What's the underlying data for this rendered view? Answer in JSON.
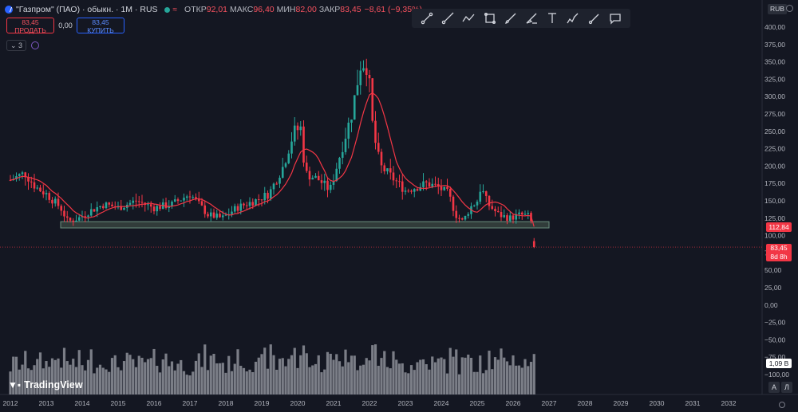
{
  "header": {
    "title": "\"Газпром\" (ПАО) · обыкн. · 1M · RUS",
    "open_label": "ОТКР",
    "open_value": "92,01",
    "high_label": "МАКС",
    "high_value": "96,40",
    "low_label": "МИН",
    "low_value": "82,00",
    "close_label": "ЗАКР",
    "close_value": "83,45",
    "change_value": "−8,61 (−9,35%)"
  },
  "trade": {
    "sell_price": "83,45",
    "sell_label": "ПРОДАТЬ",
    "spread": "0,00",
    "buy_price": "83,45",
    "buy_label": "КУПИТЬ"
  },
  "indicators": {
    "collapsed_count": "3"
  },
  "toolbar": {
    "tools": [
      "trend-line-icon",
      "ray-icon",
      "path-icon",
      "rectangle-icon",
      "brush-icon",
      "highlighter-icon",
      "text-icon",
      "pencil-icon",
      "marker-icon",
      "comment-icon"
    ]
  },
  "currency": "RUB",
  "logo_text": "TradingView",
  "scale_buttons": {
    "auto": "A",
    "log": "Л"
  },
  "tags": {
    "ma_value": "112,84",
    "price": "83,45",
    "countdown": "8d 8h",
    "volume": "1,09 B"
  },
  "colors": {
    "background": "#141722",
    "up": "#26a69a",
    "down": "#f23645",
    "ma_line": "#f23645",
    "volume": "#9598a1",
    "zone_fill": "#3b4a43",
    "zone_stroke": "#6b8f7e"
  },
  "chart_data": {
    "type": "candlestick",
    "timeframe": "1M",
    "y_axis_ticks": [
      "400,00",
      "375,00",
      "350,00",
      "325,00",
      "300,00",
      "275,00",
      "250,00",
      "225,00",
      "200,00",
      "175,00",
      "150,00",
      "125,00",
      "100,00",
      "75,00",
      "50,00",
      "25,00",
      "0,00",
      "−25,00",
      "−50,00",
      "−75,00",
      "−100,00"
    ],
    "y_ticks_values": [
      400,
      375,
      350,
      325,
      300,
      275,
      250,
      225,
      200,
      175,
      150,
      125,
      100,
      75,
      50,
      25,
      0,
      -25,
      -50,
      -75,
      -100
    ],
    "x_axis_ticks": [
      "2012",
      "2013",
      "2014",
      "2015",
      "2016",
      "2017",
      "2018",
      "2019",
      "2020",
      "2021",
      "2022",
      "2023",
      "2024",
      "2025",
      "2026",
      "2027",
      "2028",
      "2029",
      "2030",
      "2031",
      "2032"
    ],
    "ylim": [
      -100,
      400
    ],
    "price_anchors": [
      [
        2012.0,
        180
      ],
      [
        2012.4,
        190
      ],
      [
        2012.7,
        170
      ],
      [
        2013.0,
        160
      ],
      [
        2013.4,
        140
      ],
      [
        2013.6,
        120
      ],
      [
        2013.9,
        125
      ],
      [
        2014.2,
        135
      ],
      [
        2014.6,
        145
      ],
      [
        2015.0,
        140
      ],
      [
        2015.5,
        150
      ],
      [
        2016.0,
        140
      ],
      [
        2016.5,
        145
      ],
      [
        2017.0,
        160
      ],
      [
        2017.5,
        130
      ],
      [
        2017.9,
        125
      ],
      [
        2018.3,
        140
      ],
      [
        2018.8,
        150
      ],
      [
        2019.2,
        160
      ],
      [
        2019.6,
        200
      ],
      [
        2019.9,
        250
      ],
      [
        2020.1,
        255
      ],
      [
        2020.2,
        190
      ],
      [
        2020.6,
        180
      ],
      [
        2020.9,
        165
      ],
      [
        2021.2,
        220
      ],
      [
        2021.5,
        275
      ],
      [
        2021.75,
        345
      ],
      [
        2021.9,
        350
      ],
      [
        2022.0,
        315
      ],
      [
        2022.1,
        250
      ],
      [
        2022.3,
        200
      ],
      [
        2022.5,
        190
      ],
      [
        2022.8,
        175
      ],
      [
        2023.0,
        165
      ],
      [
        2023.3,
        170
      ],
      [
        2023.6,
        175
      ],
      [
        2023.9,
        170
      ],
      [
        2024.2,
        160
      ],
      [
        2024.4,
        130
      ],
      [
        2024.6,
        120
      ],
      [
        2024.8,
        140
      ],
      [
        2025.0,
        150
      ],
      [
        2025.1,
        170
      ],
      [
        2025.3,
        145
      ],
      [
        2025.6,
        130
      ],
      [
        2025.9,
        125
      ],
      [
        2026.2,
        130
      ],
      [
        2026.45,
        128
      ],
      [
        2026.5,
        120
      ],
      [
        2026.55,
        100
      ],
      [
        2026.6,
        90
      ],
      [
        2026.65,
        83.45
      ]
    ],
    "last_candle": {
      "open": 92.01,
      "high": 96.4,
      "low": 82.0,
      "close": 83.45
    },
    "support_zone": {
      "x": [
        2013.4,
        2027.0
      ],
      "y": [
        111,
        120
      ]
    },
    "moving_average": {
      "last_value": 112.84
    },
    "volume_last": 1.09,
    "volume_unit": "B"
  }
}
